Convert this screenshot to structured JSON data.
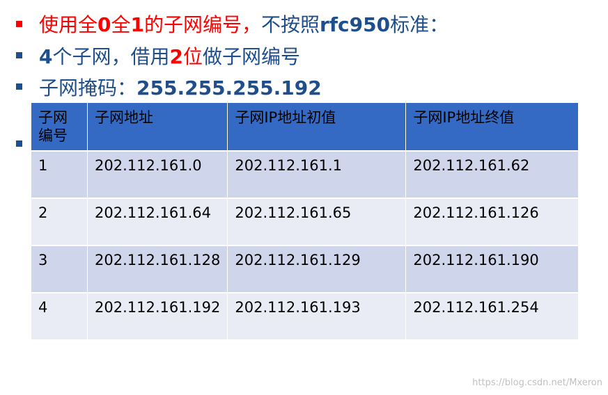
{
  "bullets": [
    {
      "segments": [
        {
          "t": "使用全",
          "red": true,
          "bold": false
        },
        {
          "t": "0",
          "red": true,
          "bold": true
        },
        {
          "t": "全",
          "red": true,
          "bold": false
        },
        {
          "t": "1",
          "red": true,
          "bold": true
        },
        {
          "t": "的子网编号，",
          "red": true,
          "bold": false
        },
        {
          "t": "不按照",
          "red": false,
          "bold": false
        },
        {
          "t": "rfc950",
          "red": false,
          "bold": true
        },
        {
          "t": "标准：",
          "red": false,
          "bold": false
        }
      ]
    },
    {
      "segments": [
        {
          "t": "4",
          "red": false,
          "bold": true
        },
        {
          "t": "个子网，借用",
          "red": false,
          "bold": false
        },
        {
          "t": "2",
          "red": true,
          "bold": true
        },
        {
          "t": "位",
          "red": true,
          "bold": false
        },
        {
          "t": "做子网编号",
          "red": false,
          "bold": false
        }
      ]
    },
    {
      "segments": [
        {
          "t": "子网掩码：",
          "red": false,
          "bold": false
        },
        {
          "t": "255.255.255.192",
          "red": false,
          "bold": true
        }
      ]
    }
  ],
  "colors": {
    "text": "#1f4e8c",
    "highlight": "#ff0000",
    "header": "#3469c4",
    "row_odd": "#cfd5ea",
    "row_even": "#e9ebf5"
  },
  "table": {
    "headers": [
      "子网编号",
      "子网地址",
      "子网IP地址初值",
      "子网IP地址终值"
    ],
    "rows": [
      [
        "1",
        "202.112.161.0",
        "202.112.161.1",
        "202.112.161.62"
      ],
      [
        "2",
        "202.112.161.64",
        "202.112.161.65",
        "202.112.161.126"
      ],
      [
        "3",
        "202.112.161.128",
        "202.112.161.129",
        "202.112.161.190"
      ],
      [
        "4",
        "202.112.161.192",
        "202.112.161.193",
        "202.112.161.254"
      ]
    ]
  },
  "watermark": "https://blog.csdn.net/Mxeron"
}
